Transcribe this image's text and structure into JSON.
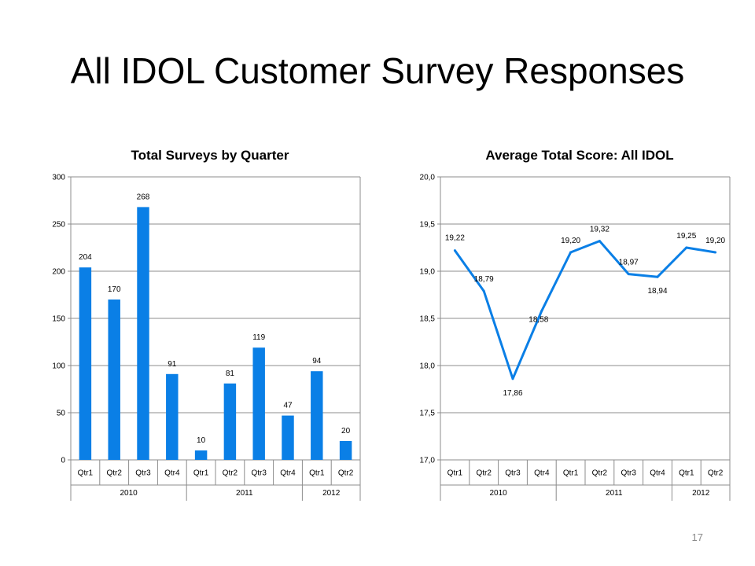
{
  "slide": {
    "title": "All IDOL Customer Survey Responses",
    "page_number": "17"
  },
  "colors": {
    "series": "#0a7fe6",
    "grid": "#8c8c8c",
    "axis": "#8c8c8c"
  },
  "chart_data": [
    {
      "type": "bar",
      "title": "Total Surveys by Quarter",
      "categories": [
        "Qtr1",
        "Qtr2",
        "Qtr3",
        "Qtr4",
        "Qtr1",
        "Qtr2",
        "Qtr3",
        "Qtr4",
        "Qtr1",
        "Qtr2"
      ],
      "groups": [
        {
          "label": "2010",
          "count": 4
        },
        {
          "label": "2011",
          "count": 4
        },
        {
          "label": "2012",
          "count": 2
        }
      ],
      "values": [
        204,
        170,
        268,
        91,
        10,
        81,
        119,
        47,
        94,
        20
      ],
      "value_labels": [
        "204",
        "170",
        "268",
        "91",
        "10",
        "81",
        "119",
        "47",
        "94",
        "20"
      ],
      "ylim": [
        0,
        300
      ],
      "yticks": [
        0,
        50,
        100,
        150,
        200,
        250,
        300
      ],
      "ytick_labels": [
        "0",
        "50",
        "100",
        "150",
        "200",
        "250",
        "300"
      ],
      "grid": true,
      "legend": "none"
    },
    {
      "type": "line",
      "title": "Average Total Score: All IDOL",
      "categories": [
        "Qtr1",
        "Qtr2",
        "Qtr3",
        "Qtr4",
        "Qtr1",
        "Qtr2",
        "Qtr3",
        "Qtr4",
        "Qtr1",
        "Qtr2"
      ],
      "groups": [
        {
          "label": "2010",
          "count": 4
        },
        {
          "label": "2011",
          "count": 4
        },
        {
          "label": "2012",
          "count": 2
        }
      ],
      "values": [
        19.22,
        18.79,
        17.86,
        18.58,
        19.2,
        19.32,
        18.97,
        18.94,
        19.25,
        19.2
      ],
      "value_labels": [
        "19,22",
        "18,79",
        "17,86",
        "18,58",
        "19,20",
        "19,32",
        "18,97",
        "18,94",
        "19,25",
        "19,20"
      ],
      "ylim": [
        17.0,
        20.0
      ],
      "yticks": [
        17.0,
        17.5,
        18.0,
        18.5,
        19.0,
        19.5,
        20.0
      ],
      "ytick_labels": [
        "17,0",
        "17,5",
        "18,0",
        "18,5",
        "19,0",
        "19,5",
        "20,0"
      ],
      "grid": true,
      "legend": "none"
    }
  ]
}
